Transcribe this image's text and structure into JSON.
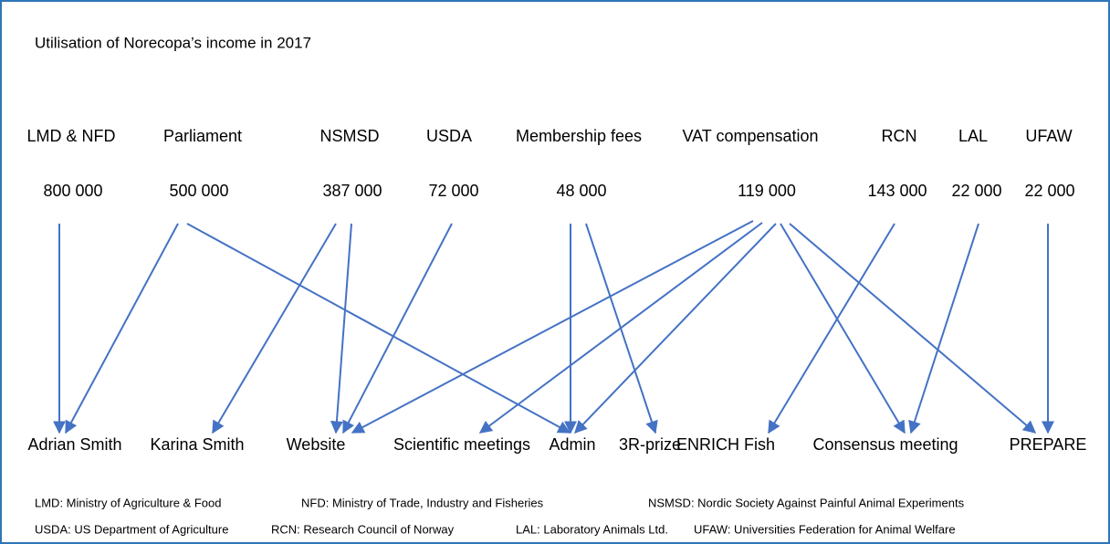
{
  "title": "Utilisation of Norecopa’s income in 2017",
  "sources": [
    {
      "name": "LMD & NFD",
      "amount": "800 000"
    },
    {
      "name": "Parliament",
      "amount": "500 000"
    },
    {
      "name": "NSMSD",
      "amount": "387 000"
    },
    {
      "name": "USDA",
      "amount": "72 000"
    },
    {
      "name": "Membership fees",
      "amount": "48 000"
    },
    {
      "name": "VAT compensation",
      "amount": "119 000"
    },
    {
      "name": "RCN",
      "amount": "143 000"
    },
    {
      "name": "LAL",
      "amount": "22 000"
    },
    {
      "name": "UFAW",
      "amount": "22 000"
    }
  ],
  "targets": [
    "Adrian Smith",
    "Karina Smith",
    "Website",
    "Scientific meetings",
    "Admin",
    "3R-prize",
    "ENRICH Fish",
    "Consensus meeting",
    "PREPARE"
  ],
  "legend": [
    [
      "LMD: Ministry of Agriculture & Food",
      "NFD: Ministry of Trade, Industry and Fisheries",
      "NSMSD: Nordic Society Against Painful Animal Experiments"
    ],
    [
      "USDA: US Department of Agriculture",
      "RCN: Research Council of Norway",
      "LAL: Laboratory Animals Ltd.",
      "UFAW: Universities Federation for Animal Welfare"
    ]
  ]
}
